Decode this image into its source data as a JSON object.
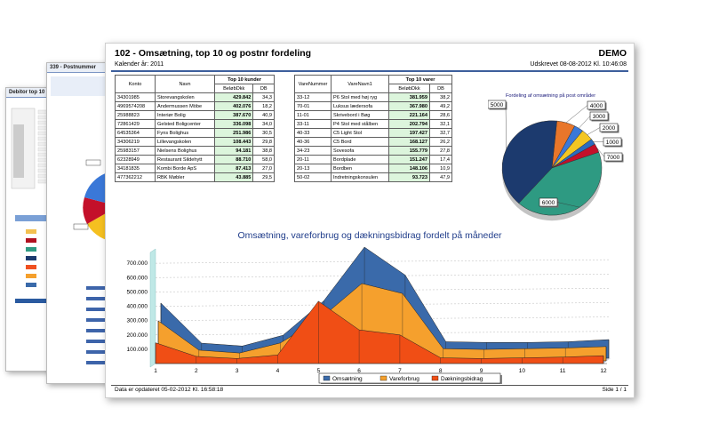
{
  "background_pages": {
    "page1": {
      "title": "Debitor top 10"
    },
    "page2": {
      "title": "339 - Postnummer"
    }
  },
  "report": {
    "title": "102 - Omsætning, top 10 og postnr fordeling",
    "badge": "DEMO",
    "period": "Kalender år: 2011",
    "printed": "Udskrevet 08-08-2012 Kl. 10:46:08",
    "footer_updated": "Data er opdateret 05-02-2012 Kl. 16:58:18",
    "footer_page": "Side 1 / 1"
  },
  "customers": {
    "col_konto": "Konto",
    "col_navn": "Navn",
    "group_label": "Top 10 kunder",
    "col_belob": "BeløbDkk",
    "col_db": "DB",
    "rows": [
      {
        "konto": "34301985",
        "navn": "Storevangskolen",
        "belob": "429.842",
        "db": "34,3"
      },
      {
        "konto": "4969574208",
        "navn": "Andermussen Möbe",
        "belob": "402.076",
        "db": "18,2"
      },
      {
        "konto": "25988823",
        "navn": "Interiør Bolig",
        "belob": "387.670",
        "db": "40,9"
      },
      {
        "konto": "72861429",
        "navn": "Gelsted Boligcenter",
        "belob": "336.098",
        "db": "34,0"
      },
      {
        "konto": "64535364",
        "navn": "Fyns Bolighus",
        "belob": "251.986",
        "db": "30,5"
      },
      {
        "konto": "34306219",
        "navn": "Lillevangskolen",
        "belob": "108.443",
        "db": "29,8"
      },
      {
        "konto": "25983157",
        "navn": "Nielsens Bolighus",
        "belob": "94.181",
        "db": "38,8"
      },
      {
        "konto": "62328949",
        "navn": "Restaurant Sildehytt",
        "belob": "88.710",
        "db": "58,0"
      },
      {
        "konto": "34181835",
        "navn": "Kombi Borde ApS",
        "belob": "87.413",
        "db": "27,0"
      },
      {
        "konto": "477362212",
        "navn": "RBK Møbler",
        "belob": "43.885",
        "db": "29,5"
      }
    ]
  },
  "products": {
    "col_nr": "VareNummer",
    "col_navn": "VareNavn1",
    "group_label": "Top 10 varer",
    "col_belob": "BeløbDkk",
    "col_db": "DB",
    "rows": [
      {
        "nr": "33-12",
        "navn": "P6 Stol med høj ryg",
        "belob": "381.959",
        "db": "38,2"
      },
      {
        "nr": "70-01",
        "navn": "Luksus lædersofa",
        "belob": "367.980",
        "db": "49,2"
      },
      {
        "nr": "11-01",
        "navn": "Skrivebord i Bøg",
        "belob": "221.164",
        "db": "28,6"
      },
      {
        "nr": "33-11",
        "navn": "P4 Stol med stålben",
        "belob": "202.794",
        "db": "32,1"
      },
      {
        "nr": "40-33",
        "navn": "C5 Light Stol",
        "belob": "197.427",
        "db": "32,7"
      },
      {
        "nr": "40-36",
        "navn": "C5 Bord",
        "belob": "168.127",
        "db": "26,2"
      },
      {
        "nr": "34-23",
        "navn": "Sovesofa",
        "belob": "155.779",
        "db": "27,8"
      },
      {
        "nr": "20-11",
        "navn": "Bordplade",
        "belob": "151.247",
        "db": "17,4"
      },
      {
        "nr": "20-13",
        "navn": "Bordben",
        "belob": "148.106",
        "db": "10,9"
      },
      {
        "nr": "50-02",
        "navn": "Indretningskonsulen",
        "belob": "93.723",
        "db": "47,9"
      }
    ]
  },
  "chart_data": [
    {
      "type": "pie",
      "title": "Fordeling af omsætning på post områder",
      "slices": [
        {
          "label": "4000",
          "value": 6,
          "color": "#e8762a"
        },
        {
          "label": "3000",
          "value": 3,
          "color": "#3a78d8"
        },
        {
          "label": "2000",
          "value": 4,
          "color": "#f3c623"
        },
        {
          "label": "1000",
          "value": 2,
          "color": "#2a6cc0"
        },
        {
          "label": "7000",
          "value": 3,
          "color": "#c4102a"
        },
        {
          "label": "6000",
          "value": 42,
          "color": "#2e9a82"
        },
        {
          "label": "5000",
          "value": 40,
          "color": "#1c3a6e"
        }
      ]
    },
    {
      "type": "area",
      "title": "Omsætning, vareforbrug og dækningsbidrag fordelt på måneder",
      "categories": [
        "1",
        "2",
        "3",
        "4",
        "5",
        "6",
        "7",
        "8",
        "9",
        "10",
        "11",
        "12"
      ],
      "ylim": [
        0,
        800000
      ],
      "yticks": [
        100000,
        200000,
        300000,
        400000,
        500000,
        600000,
        700000
      ],
      "ytick_labels": [
        "100.000",
        "200.000",
        "300.000",
        "400.000",
        "500.000",
        "600.000",
        "700.000"
      ],
      "legend_position": "bottom",
      "series": [
        {
          "name": "Omsætning",
          "color": "#3a6aaa",
          "values": [
            385000,
            105000,
            85000,
            160000,
            400000,
            775000,
            580000,
            115000,
            110000,
            110000,
            115000,
            130000
          ]
        },
        {
          "name": "Vareforbrug",
          "color": "#f5a02d",
          "values": [
            280000,
            75000,
            55000,
            125000,
            300000,
            540000,
            470000,
            85000,
            80000,
            85000,
            90000,
            100000
          ]
        },
        {
          "name": "Dækningsbidrag",
          "color": "#f04e15",
          "values": [
            145000,
            50000,
            35000,
            60000,
            435000,
            235000,
            200000,
            40000,
            35000,
            40000,
            45000,
            55000
          ]
        }
      ]
    }
  ]
}
